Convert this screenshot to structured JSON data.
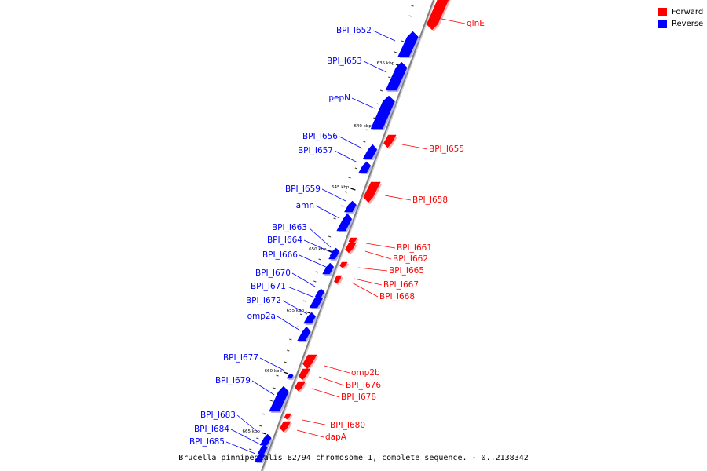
{
  "legend": {
    "forward_label": "Forward",
    "reverse_label": "Reverse",
    "forward_color": "#ff0000",
    "reverse_color": "#0000ff"
  },
  "caption": "Brucella pinnipedialis B2/94 chromosome 1, complete sequence. - 0..2138342",
  "colors": {
    "forward": "#ff0000",
    "reverse": "#0000ff",
    "backbone": "#808080"
  },
  "ticks": [
    "635 kbp",
    "640 kbp",
    "645 kbp",
    "650 kbp",
    "655 kbp",
    "660 kbp",
    "665 kbp"
  ],
  "genes": [
    {
      "name": "glnE",
      "strand": "forward"
    },
    {
      "name": "BPI_I652",
      "strand": "reverse"
    },
    {
      "name": "BPI_I653",
      "strand": "reverse"
    },
    {
      "name": "pepN",
      "strand": "reverse"
    },
    {
      "name": "BPI_I655",
      "strand": "forward"
    },
    {
      "name": "BPI_I656",
      "strand": "reverse"
    },
    {
      "name": "BPI_I657",
      "strand": "reverse"
    },
    {
      "name": "BPI_I658",
      "strand": "forward"
    },
    {
      "name": "BPI_I659",
      "strand": "reverse"
    },
    {
      "name": "amn",
      "strand": "reverse"
    },
    {
      "name": "BPI_I661",
      "strand": "forward"
    },
    {
      "name": "BPI_I662",
      "strand": "forward"
    },
    {
      "name": "BPI_I663",
      "strand": "reverse"
    },
    {
      "name": "BPI_I664",
      "strand": "reverse"
    },
    {
      "name": "BPI_I665",
      "strand": "forward"
    },
    {
      "name": "BPI_I666",
      "strand": "reverse"
    },
    {
      "name": "BPI_I667",
      "strand": "forward"
    },
    {
      "name": "BPI_I668",
      "strand": "forward"
    },
    {
      "name": "BPI_I670",
      "strand": "reverse"
    },
    {
      "name": "BPI_I671",
      "strand": "reverse"
    },
    {
      "name": "BPI_I672",
      "strand": "reverse"
    },
    {
      "name": "omp2a",
      "strand": "reverse"
    },
    {
      "name": "omp2b",
      "strand": "forward"
    },
    {
      "name": "BPI_I676",
      "strand": "forward"
    },
    {
      "name": "BPI_I677",
      "strand": "reverse"
    },
    {
      "name": "BPI_I678",
      "strand": "forward"
    },
    {
      "name": "BPI_I679",
      "strand": "reverse"
    },
    {
      "name": "BPI_I680",
      "strand": "forward"
    },
    {
      "name": "dapA",
      "strand": "forward"
    },
    {
      "name": "BPI_I683",
      "strand": "reverse"
    },
    {
      "name": "BPI_I684",
      "strand": "reverse"
    },
    {
      "name": "BPI_I685",
      "strand": "reverse"
    }
  ]
}
